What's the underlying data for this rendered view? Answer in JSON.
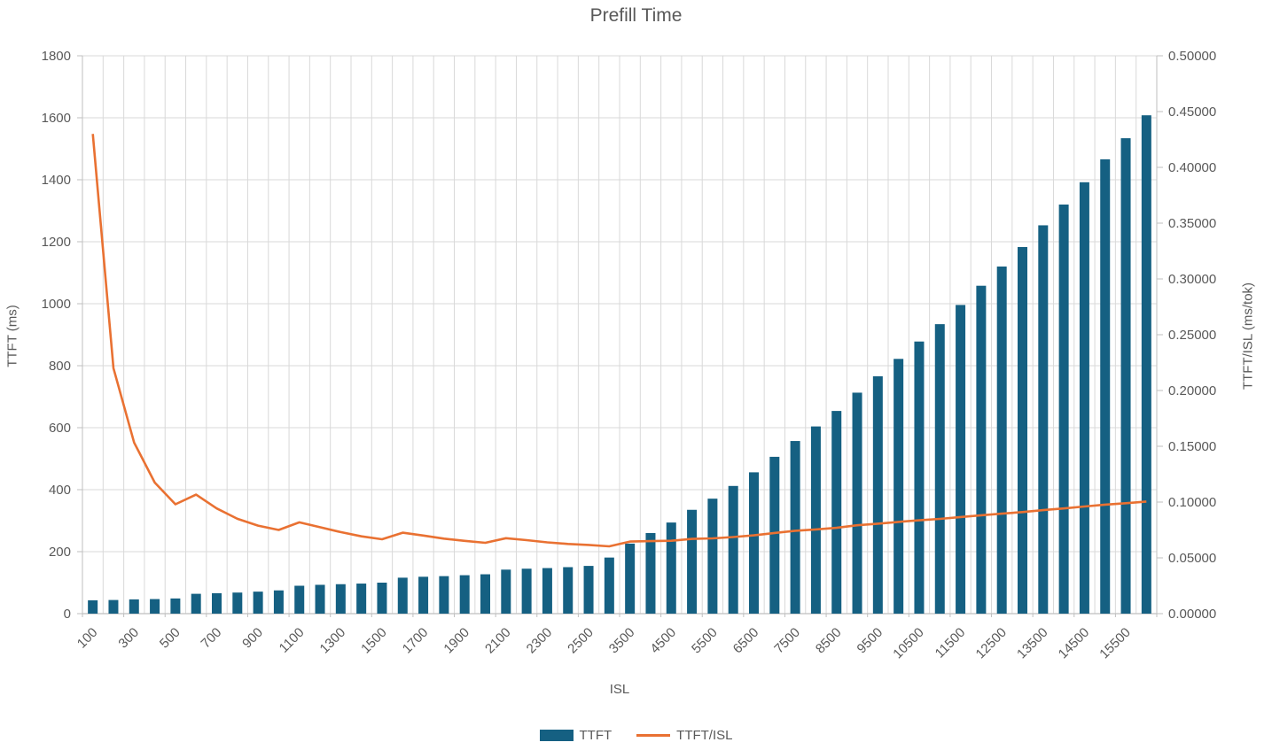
{
  "title": "Prefill Time",
  "axes": {
    "x_title": "ISL",
    "y_left_title": "TTFT (ms)",
    "y_right_title": "TTFT/ISL  (ms/tok)"
  },
  "legend": [
    {
      "label": "TTFT",
      "type": "bar"
    },
    {
      "label": "TTFT/ISL",
      "type": "line"
    }
  ],
  "colors": {
    "bar": "#156082",
    "line": "#E97132",
    "text": "#595959",
    "grid": "#D9D9D9",
    "axis": "#BFBFBF"
  },
  "chart_data": {
    "type": "bar",
    "subtype": "combo-bar-line-dual-axis",
    "title": "Prefill Time",
    "xlabel": "ISL",
    "ylabel_left": "TTFT (ms)",
    "ylabel_right": "TTFT/ISL  (ms/tok)",
    "categories": [
      100,
      200,
      300,
      400,
      500,
      600,
      700,
      800,
      900,
      1000,
      1100,
      1200,
      1300,
      1400,
      1500,
      1600,
      1700,
      1800,
      1900,
      2000,
      2100,
      2200,
      2300,
      2400,
      2500,
      3000,
      3500,
      4000,
      4500,
      5000,
      5500,
      6000,
      6500,
      7000,
      7500,
      8000,
      8500,
      9000,
      9500,
      10000,
      10500,
      11000,
      11500,
      12000,
      12500,
      13000,
      13500,
      14000,
      14500,
      15000,
      15500,
      16000
    ],
    "x_label_interval": 2,
    "grid": "both",
    "legend_position": "bottom",
    "y_left": {
      "min": 0,
      "max": 1800,
      "step": 200
    },
    "y_right": {
      "min": 0,
      "max": 0.5,
      "step": 0.05,
      "decimals": 5
    },
    "series": [
      {
        "name": "TTFT",
        "type": "bar",
        "axis": "left",
        "values": [
          43,
          44,
          46,
          47,
          49,
          64,
          66,
          68,
          71,
          75,
          90,
          93,
          95,
          97,
          100,
          116,
          119,
          121,
          124,
          127,
          142,
          145,
          147,
          150,
          154,
          181,
          226,
          260,
          294,
          335,
          371,
          412,
          456,
          506,
          557,
          604,
          654,
          713,
          766,
          822,
          878,
          934,
          996,
          1058,
          1120,
          1183,
          1253,
          1320,
          1392,
          1466,
          1534,
          1608
        ]
      },
      {
        "name": "TTFT/ISL",
        "type": "line",
        "axis": "right",
        "values": [
          0.43,
          0.22,
          0.15333,
          0.1175,
          0.098,
          0.10667,
          0.09429,
          0.085,
          0.07889,
          0.075,
          0.08182,
          0.0775,
          0.07308,
          0.06929,
          0.06667,
          0.0725,
          0.07,
          0.06722,
          0.06526,
          0.0635,
          0.06762,
          0.06591,
          0.06391,
          0.0625,
          0.0616,
          0.06033,
          0.06457,
          0.065,
          0.06533,
          0.067,
          0.06745,
          0.06867,
          0.07015,
          0.07229,
          0.07427,
          0.0755,
          0.07694,
          0.07922,
          0.08063,
          0.0822,
          0.08362,
          0.08491,
          0.08661,
          0.08817,
          0.0896,
          0.091,
          0.09281,
          0.09429,
          0.096,
          0.09773,
          0.09897,
          0.1005
        ]
      }
    ]
  }
}
